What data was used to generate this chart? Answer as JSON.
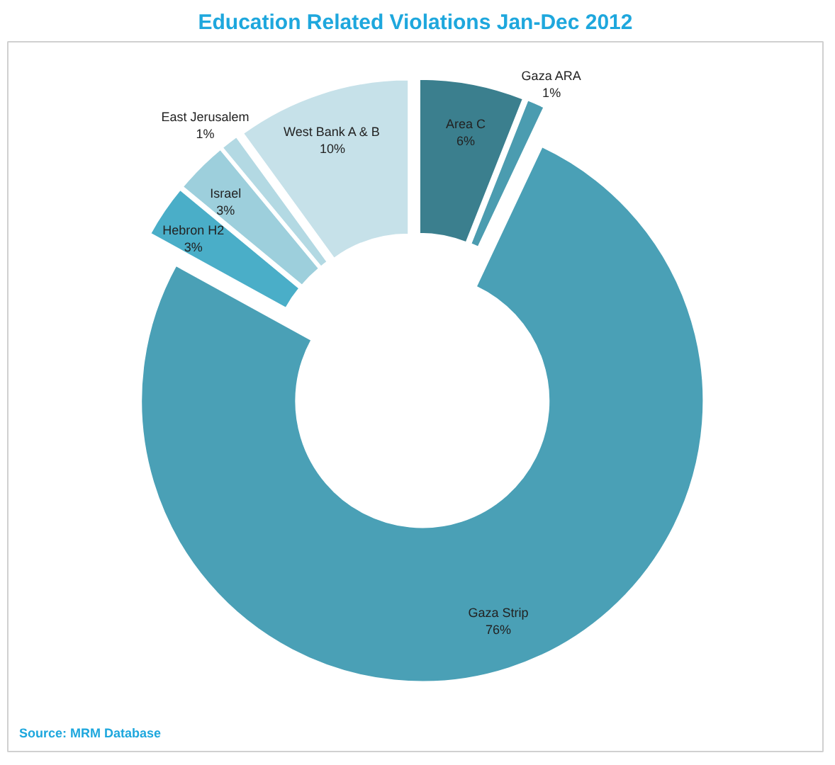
{
  "chart_data": {
    "type": "donut",
    "title": "Education Related Violations Jan-Dec 2012",
    "categories": [
      "Area C",
      "Gaza ARA",
      "Gaza Strip",
      "Hebron H2",
      "Israel",
      "East Jerusalem",
      "West Bank A & B"
    ],
    "values": [
      6,
      1,
      76,
      3,
      3,
      1,
      10
    ],
    "colors": [
      "#3b7f8e",
      "#4b9cb0",
      "#4aa0b6",
      "#4aaec8",
      "#9dcfdc",
      "#b3d9e3",
      "#c6e1e9"
    ],
    "value_labels": [
      "6%",
      "1%",
      "76%",
      "3%",
      "3%",
      "1%",
      "10%"
    ],
    "annotations": [
      "Source: MRM Database"
    ]
  }
}
